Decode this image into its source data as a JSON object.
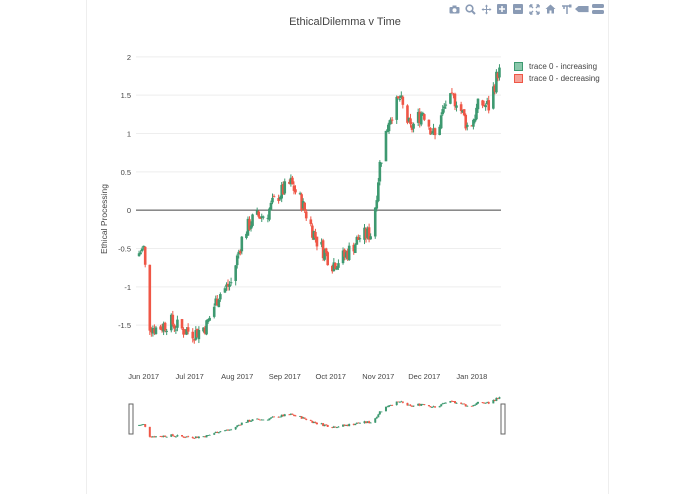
{
  "chart_data": {
    "type": "candlestick",
    "title": "EthicalDilemma v Time",
    "xlabel": "",
    "ylabel": "Ethical Processing",
    "ylim": [
      -1.85,
      2.05
    ],
    "yticks": [
      -1.5,
      -1,
      -0.5,
      0,
      0.5,
      1,
      1.5,
      2
    ],
    "ytick_labels": [
      "-1.5",
      "-1",
      "-0.5",
      "0",
      "0.5",
      "1",
      "1.5",
      "2"
    ],
    "x_tick_labels": [
      "Jun 2017",
      "Jul 2017",
      "Aug 2017",
      "Sep 2017",
      "Oct 2017",
      "Nov 2017",
      "Dec 2017",
      "Jan 2018"
    ],
    "x_tick_dates": [
      "2017-06-01",
      "2017-07-01",
      "2017-08-01",
      "2017-09-01",
      "2017-10-01",
      "2017-11-01",
      "2017-12-01",
      "2018-01-01"
    ],
    "xlim": [
      "2017-05-27",
      "2018-01-20"
    ],
    "grid": true,
    "legend_position": "top-right",
    "increasing_color": "#3d9970",
    "decreasing_color": "#ef5646",
    "range_slider": true,
    "series": [
      {
        "name": "trace 0 - increasing"
      },
      {
        "name": "trace 0 - decreasing"
      }
    ],
    "close_points": [
      [
        "2017-05-27",
        -0.6
      ],
      [
        "2017-06-01",
        -0.5
      ],
      [
        "2017-06-05",
        -1.5
      ],
      [
        "2017-06-10",
        -1.55
      ],
      [
        "2017-06-18",
        -1.45
      ],
      [
        "2017-06-25",
        -1.55
      ],
      [
        "2017-07-05",
        -1.6
      ],
      [
        "2017-07-12",
        -1.5
      ],
      [
        "2017-07-20",
        -1.1
      ],
      [
        "2017-07-28",
        -0.95
      ],
      [
        "2017-08-05",
        -0.3
      ],
      [
        "2017-08-12",
        -0.1
      ],
      [
        "2017-08-20",
        -0.05
      ],
      [
        "2017-08-28",
        0.2
      ],
      [
        "2017-09-05",
        0.35
      ],
      [
        "2017-09-12",
        0.1
      ],
      [
        "2017-09-22",
        -0.4
      ],
      [
        "2017-10-02",
        -0.7
      ],
      [
        "2017-10-10",
        -0.6
      ],
      [
        "2017-10-20",
        -0.35
      ],
      [
        "2017-10-28",
        -0.3
      ],
      [
        "2017-11-02",
        0.6
      ],
      [
        "2017-11-08",
        1.2
      ],
      [
        "2017-11-15",
        1.45
      ],
      [
        "2017-11-22",
        1.05
      ],
      [
        "2017-11-30",
        1.3
      ],
      [
        "2017-12-08",
        0.95
      ],
      [
        "2017-12-15",
        1.4
      ],
      [
        "2017-12-22",
        1.45
      ],
      [
        "2017-12-30",
        1.05
      ],
      [
        "2018-01-06",
        1.4
      ],
      [
        "2018-01-12",
        1.35
      ],
      [
        "2018-01-18",
        1.8
      ]
    ]
  },
  "modebar": [
    "camera-icon",
    "zoom-icon",
    "pan-icon",
    "zoom-in-icon",
    "zoom-out-icon",
    "autoscale-icon",
    "home-icon",
    "spike-icon",
    "hover-closest-icon",
    "hover-compare-icon"
  ]
}
